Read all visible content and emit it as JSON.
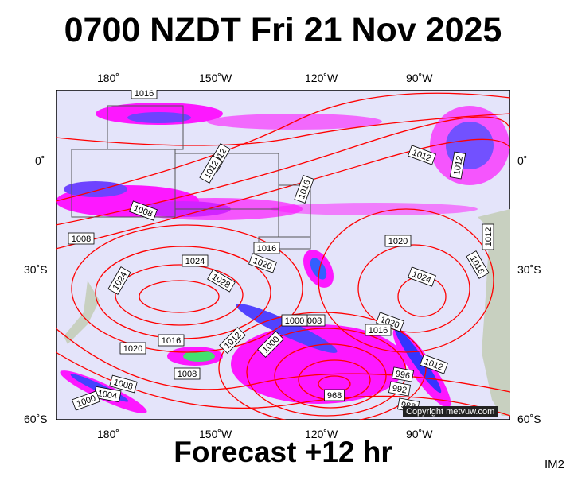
{
  "title": "0700 NZDT Fri 21 Nov 2025",
  "footer": "Forecast +12 hr",
  "code": "IM2",
  "copyright": "Copyright metvuw.com",
  "lon_labels": [
    "180˚",
    "150˚W",
    "120˚W",
    "90˚W"
  ],
  "lat_labels": [
    "0˚",
    "30˚S",
    "60˚S"
  ],
  "colors": {
    "background": "#e4e4fa",
    "isobar": "#ff0000",
    "rain_light": "#ff00ff",
    "rain_heavy": "#0000ff",
    "land": "#c8d0c0"
  },
  "isobar_labels": [
    "1016",
    "1012",
    "1012",
    "1012",
    "1016",
    "1008",
    "1008",
    "1012",
    "1016",
    "1020",
    "1024",
    "1028",
    "1024",
    "1020",
    "1024",
    "1016",
    "1012",
    "1020",
    "1016",
    "1012",
    "1008",
    "1008",
    "1004",
    "1000",
    "1000",
    "1008",
    "1000",
    "1020",
    "1016",
    "1012",
    "996",
    "992",
    "988",
    "968"
  ]
}
